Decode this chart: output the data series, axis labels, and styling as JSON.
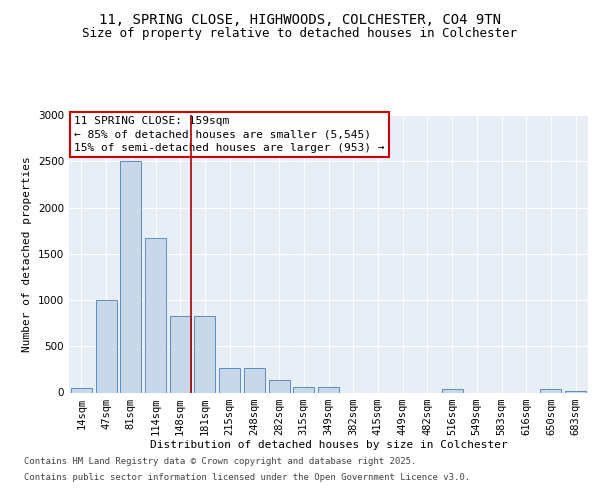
{
  "title_line1": "11, SPRING CLOSE, HIGHWOODS, COLCHESTER, CO4 9TN",
  "title_line2": "Size of property relative to detached houses in Colchester",
  "xlabel": "Distribution of detached houses by size in Colchester",
  "ylabel": "Number of detached properties",
  "categories": [
    "14sqm",
    "47sqm",
    "81sqm",
    "114sqm",
    "148sqm",
    "181sqm",
    "215sqm",
    "248sqm",
    "282sqm",
    "315sqm",
    "349sqm",
    "382sqm",
    "415sqm",
    "449sqm",
    "482sqm",
    "516sqm",
    "549sqm",
    "583sqm",
    "616sqm",
    "650sqm",
    "683sqm"
  ],
  "values": [
    50,
    1000,
    2500,
    1670,
    830,
    830,
    270,
    270,
    130,
    55,
    55,
    0,
    0,
    0,
    0,
    35,
    0,
    0,
    0,
    40,
    15
  ],
  "bar_color": "#c8d8ea",
  "bar_edge_color": "#5a8ec0",
  "vline_x": 4.45,
  "vline_color": "#aa0000",
  "annotation_text": "11 SPRING CLOSE: 159sqm\n← 85% of detached houses are smaller (5,545)\n15% of semi-detached houses are larger (953) →",
  "annotation_box_color": "#cc0000",
  "ylim": [
    0,
    3000
  ],
  "yticks": [
    0,
    500,
    1000,
    1500,
    2000,
    2500,
    3000
  ],
  "bg_color": "#e8eef6",
  "footer_line1": "Contains HM Land Registry data © Crown copyright and database right 2025.",
  "footer_line2": "Contains public sector information licensed under the Open Government Licence v3.0.",
  "title_fontsize": 10,
  "subtitle_fontsize": 9,
  "axis_label_fontsize": 8,
  "tick_fontsize": 7.5,
  "annotation_fontsize": 8,
  "footer_fontsize": 6.5
}
